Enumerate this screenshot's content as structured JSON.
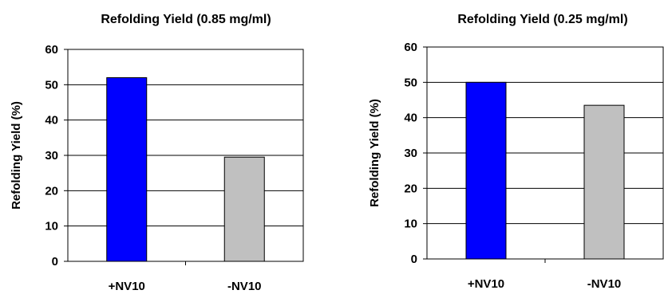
{
  "chart_data": [
    {
      "type": "bar",
      "title": "Refolding Yield (0.85 mg/ml)",
      "xlabel": "",
      "ylabel": "Refolding Yield (%)",
      "categories": [
        "+NV10",
        "-NV10"
      ],
      "values": [
        52,
        29.5
      ],
      "colors": [
        "#0000ff",
        "#c0c0c0"
      ],
      "ylim": [
        0,
        60
      ],
      "yticks": [
        "0",
        "10",
        "20",
        "30",
        "40",
        "50",
        "60"
      ],
      "grid": true,
      "legend": "none"
    },
    {
      "type": "bar",
      "title": "Refolding Yield (0.25 mg/ml)",
      "xlabel": "",
      "ylabel": "Refolding Yield (%)",
      "categories": [
        "+NV10",
        "-NV10"
      ],
      "values": [
        50,
        43.5
      ],
      "colors": [
        "#0000ff",
        "#c0c0c0"
      ],
      "ylim": [
        0,
        60
      ],
      "yticks": [
        "0",
        "10",
        "20",
        "30",
        "40",
        "50",
        "60"
      ],
      "grid": true,
      "legend": "none"
    }
  ]
}
